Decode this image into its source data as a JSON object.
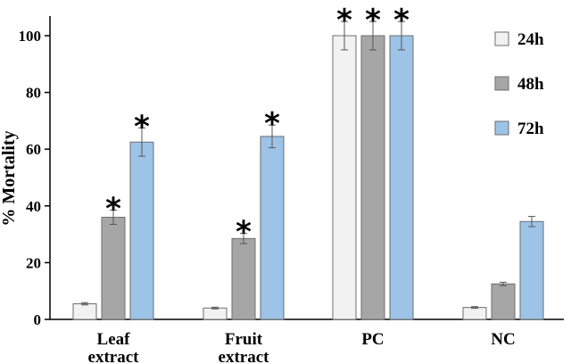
{
  "chart_data": {
    "type": "bar",
    "ylabel": "% Mortality",
    "ylim": [
      0,
      110
    ],
    "yticks": [
      0,
      20,
      40,
      60,
      80,
      100
    ],
    "categories": [
      [
        "Leaf",
        "extract"
      ],
      [
        "Fruit",
        "extract"
      ],
      [
        "PC"
      ],
      [
        "NC"
      ]
    ],
    "series": [
      {
        "name": "24h",
        "color": "#f2f2f2",
        "values": [
          5.5,
          4.0,
          100,
          4.2
        ],
        "errors": [
          0.4,
          0.3,
          5,
          0.3
        ],
        "significant": [
          false,
          false,
          true,
          false
        ]
      },
      {
        "name": "48h",
        "color": "#a6a6a6",
        "values": [
          36,
          28.5,
          100,
          12.5
        ],
        "errors": [
          2.5,
          1.8,
          5,
          0.6
        ],
        "significant": [
          true,
          true,
          true,
          false
        ]
      },
      {
        "name": "72h",
        "color": "#9dc3e6",
        "values": [
          62.5,
          64.5,
          100,
          34.5
        ],
        "errors": [
          5,
          4,
          5,
          1.8
        ],
        "significant": [
          true,
          true,
          true,
          false
        ]
      }
    ],
    "significance_marker": "*",
    "legend_position": "top-right",
    "grid": false
  }
}
